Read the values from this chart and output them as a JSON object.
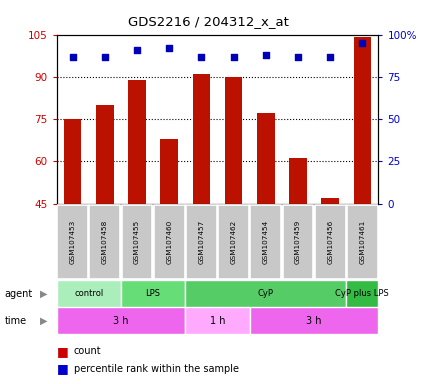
{
  "title": "GDS2216 / 204312_x_at",
  "samples": [
    "GSM107453",
    "GSM107458",
    "GSM107455",
    "GSM107460",
    "GSM107457",
    "GSM107462",
    "GSM107454",
    "GSM107459",
    "GSM107456",
    "GSM107461"
  ],
  "count_values": [
    75,
    80,
    89,
    68,
    91,
    90,
    77,
    61,
    47,
    104
  ],
  "percentile_values": [
    87,
    87,
    91,
    92,
    87,
    87,
    88,
    87,
    87,
    95
  ],
  "ylim_left": [
    45,
    105
  ],
  "ylim_right": [
    0,
    100
  ],
  "yticks_left": [
    45,
    60,
    75,
    90,
    105
  ],
  "ytick_labels_left": [
    "45",
    "60",
    "75",
    "90",
    "105"
  ],
  "yticks_right": [
    0,
    25,
    50,
    75,
    100
  ],
  "ytick_labels_right": [
    "0",
    "25",
    "50",
    "75",
    "100%"
  ],
  "grid_yticks": [
    60,
    75,
    90
  ],
  "agent_groups": [
    {
      "label": "control",
      "start": 0,
      "end": 2,
      "color": "#AAEEBB"
    },
    {
      "label": "LPS",
      "start": 2,
      "end": 4,
      "color": "#66DD77"
    },
    {
      "label": "CyP",
      "start": 4,
      "end": 9,
      "color": "#55CC66"
    },
    {
      "label": "CyP plus LPS",
      "start": 9,
      "end": 10,
      "color": "#33BB44"
    }
  ],
  "time_groups": [
    {
      "label": "3 h",
      "start": 0,
      "end": 4,
      "color": "#EE66EE"
    },
    {
      "label": "1 h",
      "start": 4,
      "end": 6,
      "color": "#FFAAFF"
    },
    {
      "label": "3 h",
      "start": 6,
      "end": 10,
      "color": "#EE66EE"
    }
  ],
  "bar_color": "#BB1100",
  "dot_color": "#0000BB",
  "background_color": "#FFFFFF",
  "sample_bg_color": "#C8C8C8",
  "left_axis_color": "#CC0000",
  "right_axis_color": "#0000CC",
  "legend_count_color": "#CC0000",
  "legend_pct_color": "#0000CC"
}
